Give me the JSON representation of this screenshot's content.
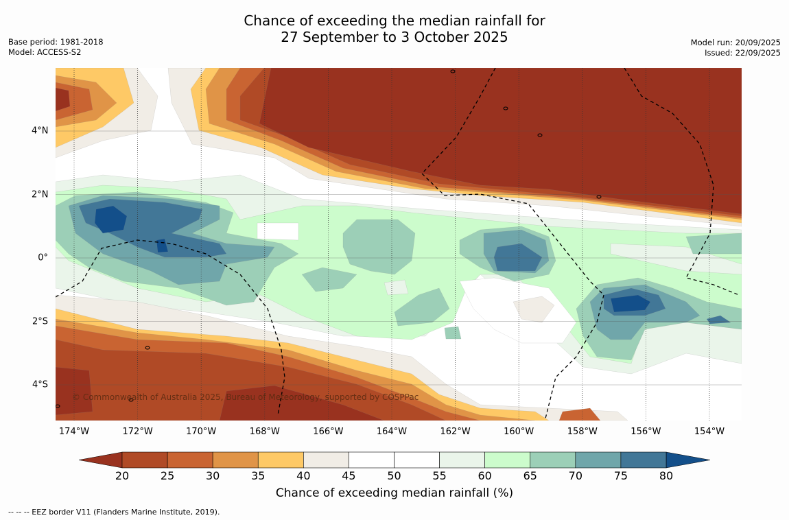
{
  "title": {
    "line1": "Chance of exceeding the median rainfall for",
    "line2": "27 September to 3 October 2025"
  },
  "meta_left": {
    "base_period": "Base period: 1981-2018",
    "model": "Model: ACCESS-S2"
  },
  "meta_right": {
    "model_run": "Model run: 20/09/2025",
    "issued": "Issued: 22/09/2025"
  },
  "map": {
    "lon_labels": [
      "174°W",
      "172°W",
      "170°W",
      "168°W",
      "166°W",
      "164°W",
      "162°W",
      "160°W",
      "158°W",
      "156°W",
      "154°W"
    ],
    "lat_labels": [
      "4°N",
      "2°N",
      "0°",
      "2°S",
      "4°S"
    ],
    "copyright": "© Commonwealth of Australia 2025, Bureau of Meteorology, supported by COSPPac"
  },
  "colorbar": {
    "ticks": [
      "20",
      "25",
      "30",
      "35",
      "40",
      "45",
      "50",
      "55",
      "60",
      "65",
      "70",
      "75",
      "80"
    ],
    "colors": [
      "#99321f",
      "#b04a26",
      "#c96432",
      "#e09447",
      "#fec966",
      "#f1ede6",
      "#ffffff",
      "#ffffff",
      "#eaf5ea",
      "#ccfccc",
      "#9ccfb7",
      "#70a6aa",
      "#427797",
      "#134f8a"
    ],
    "label": "Chance of exceeding median rainfall (%)"
  },
  "footer": "--  --  -- EEZ border V11 (Flanders Marine Institute, 2019)."
}
